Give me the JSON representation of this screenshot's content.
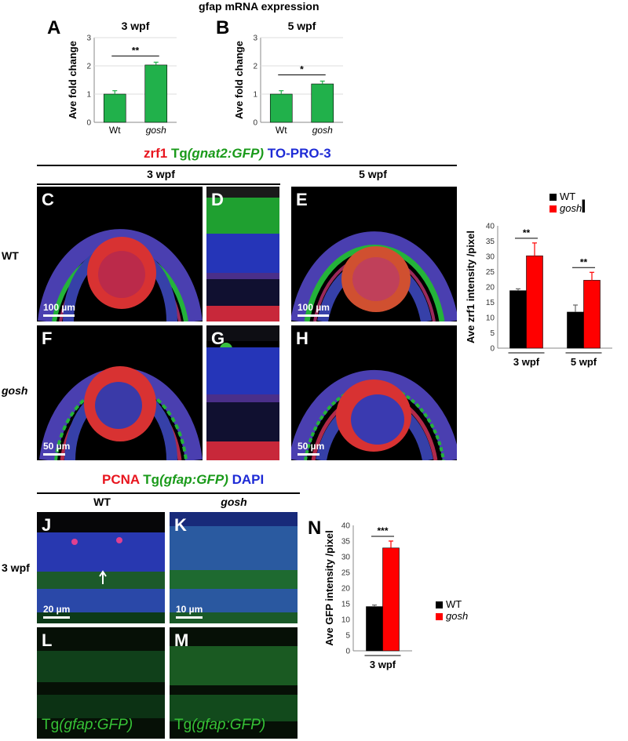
{
  "figure_title": "gfap mRNA expression",
  "panel_labels": {
    "A": "A",
    "B": "B",
    "C": "C",
    "D": "D",
    "E": "E",
    "F": "F",
    "G": "G",
    "H": "H",
    "I": "I",
    "J": "J",
    "K": "K",
    "L": "L",
    "M": "M",
    "N": "N"
  },
  "stain_header_1": {
    "zrf1": "zrf1",
    "tg": "Tg",
    "gnat2": "(gnat2:GFP)",
    "topro": "TO-PRO-3"
  },
  "stain_header_2": {
    "pcna": "PCNA",
    "tg": "Tg",
    "gfap": "(gfap:GFP)",
    "dapi": "DAPI"
  },
  "timepoints": {
    "wpf3": "3 wpf",
    "wpf5": "5 wpf"
  },
  "row_labels": {
    "wt": "WT",
    "gosh": "gosh",
    "wpf3": "3 wpf"
  },
  "col_labels": {
    "wt": "WT",
    "gosh": "gosh"
  },
  "scale_bars": {
    "c": "100 µm",
    "e": "100 µm",
    "f": "50 µm",
    "h": "50 µm",
    "j": "20 µm",
    "k": "10 µm"
  },
  "overlay_labels": {
    "l_tg": "Tg",
    "l_gfap": "(gfap:GFP)",
    "m_tg": "Tg",
    "m_gfap": "(gfap:GFP)"
  },
  "legend": {
    "wt": "WT",
    "gosh": "gosh",
    "wt_color": "#000000",
    "gosh_color": "#ff0000"
  },
  "colors": {
    "bar_green": "#21b14b",
    "bar_red": "#ff0000",
    "bar_black": "#000000"
  },
  "chart_data": [
    {
      "id": "A",
      "type": "bar",
      "title": "3 wpf",
      "ylabel": "Ave fold change",
      "ylim": [
        0,
        3
      ],
      "yticks": [
        0,
        1,
        2,
        3
      ],
      "categories": [
        "Wt",
        "gosh"
      ],
      "values": [
        1.0,
        2.03
      ],
      "errors": [
        0.12,
        0.1
      ],
      "significance": "**",
      "color": "#21b14b"
    },
    {
      "id": "B",
      "type": "bar",
      "title": "5 wpf",
      "ylabel": "Ave fold change",
      "ylim": [
        0,
        3
      ],
      "yticks": [
        0,
        1,
        2,
        3
      ],
      "categories": [
        "Wt",
        "gosh"
      ],
      "values": [
        1.0,
        1.36
      ],
      "errors": [
        0.12,
        0.1
      ],
      "significance": "*",
      "color": "#21b14b"
    },
    {
      "id": "I",
      "type": "bar",
      "ylabel": "Ave zrf1 intensity /pixel",
      "ylim": [
        0,
        40
      ],
      "yticks": [
        0,
        5,
        10,
        15,
        20,
        25,
        30,
        35,
        40
      ],
      "categories": [
        "3 wpf",
        "5 wpf"
      ],
      "series": [
        {
          "name": "WT",
          "values": [
            18.8,
            11.8
          ],
          "errors": [
            0.6,
            2.3
          ],
          "color": "#000000"
        },
        {
          "name": "gosh",
          "values": [
            30.2,
            22.2
          ],
          "errors": [
            4.2,
            2.6
          ],
          "color": "#ff0000"
        }
      ],
      "significance": [
        "**",
        "**"
      ],
      "legend": "top-right"
    },
    {
      "id": "N",
      "type": "bar",
      "ylabel": "Ave GFP intensity /pixel",
      "ylim": [
        0,
        40
      ],
      "yticks": [
        0,
        5,
        10,
        15,
        20,
        25,
        30,
        35,
        40
      ],
      "categories": [
        "3 wpf"
      ],
      "series": [
        {
          "name": "WT",
          "values": [
            14.1
          ],
          "errors": [
            0.5
          ],
          "color": "#000000"
        },
        {
          "name": "gosh",
          "values": [
            32.8
          ],
          "errors": [
            2.2
          ],
          "color": "#ff0000"
        }
      ],
      "significance": [
        "***"
      ],
      "legend": "right"
    }
  ]
}
